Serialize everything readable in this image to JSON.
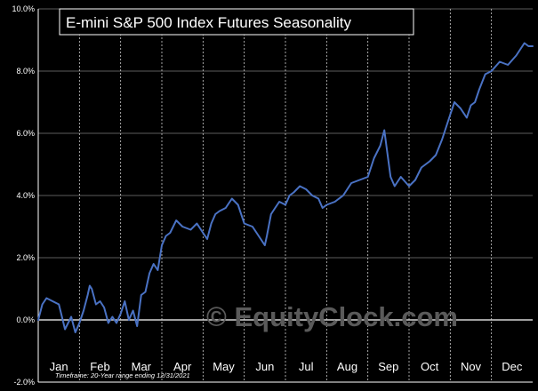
{
  "chart_data": {
    "type": "line",
    "title": "E-mini S&P 500 Index Futures Seasonality",
    "footnote": "Timeframe:  20-Year range  ending 12/31/2021",
    "watermark": "© EquityClock.com",
    "ylim": [
      -2.0,
      10.0
    ],
    "yticks": [
      -2.0,
      0.0,
      2.0,
      4.0,
      6.0,
      8.0,
      10.0
    ],
    "ytick_labels": [
      "-2.0%",
      "0.0%",
      "2.0%",
      "4.0%",
      "6.0%",
      "8.0%",
      "10.0%"
    ],
    "months": [
      "Jan",
      "Feb",
      "Mar",
      "Apr",
      "May",
      "Jun",
      "Jul",
      "Aug",
      "Sep",
      "Oct",
      "Nov",
      "Dec"
    ],
    "xlim": [
      0,
      12
    ],
    "series": [
      {
        "name": "Seasonality",
        "color": "#4a72c4",
        "x": [
          0.0,
          0.1,
          0.2,
          0.35,
          0.5,
          0.65,
          0.8,
          0.9,
          1.0,
          1.1,
          1.2,
          1.25,
          1.3,
          1.4,
          1.5,
          1.6,
          1.7,
          1.8,
          1.9,
          2.0,
          2.1,
          2.2,
          2.3,
          2.4,
          2.5,
          2.6,
          2.7,
          2.8,
          2.9,
          3.0,
          3.1,
          3.2,
          3.35,
          3.5,
          3.7,
          3.85,
          4.0,
          4.1,
          4.2,
          4.3,
          4.4,
          4.55,
          4.7,
          4.85,
          5.0,
          5.2,
          5.4,
          5.5,
          5.55,
          5.65,
          5.75,
          5.85,
          6.0,
          6.1,
          6.2,
          6.35,
          6.5,
          6.65,
          6.8,
          6.9,
          7.0,
          7.2,
          7.4,
          7.6,
          7.8,
          8.0,
          8.15,
          8.3,
          8.4,
          8.45,
          8.55,
          8.65,
          8.8,
          9.0,
          9.15,
          9.3,
          9.5,
          9.65,
          9.8,
          10.0,
          10.1,
          10.25,
          10.4,
          10.5,
          10.6,
          10.7,
          10.85,
          11.0,
          11.2,
          11.4,
          11.6,
          11.8,
          11.9,
          12.0
        ],
        "values": [
          0.0,
          0.5,
          0.7,
          0.6,
          0.5,
          -0.3,
          0.1,
          -0.4,
          -0.1,
          0.3,
          0.8,
          1.1,
          1.0,
          0.5,
          0.6,
          0.4,
          -0.1,
          0.1,
          -0.1,
          0.2,
          0.6,
          0.0,
          0.3,
          -0.2,
          0.8,
          0.9,
          1.5,
          1.8,
          1.6,
          2.4,
          2.7,
          2.8,
          3.2,
          3.0,
          2.9,
          3.1,
          2.8,
          2.6,
          3.1,
          3.4,
          3.5,
          3.6,
          3.9,
          3.7,
          3.1,
          3.0,
          2.6,
          2.4,
          2.7,
          3.4,
          3.6,
          3.8,
          3.7,
          4.0,
          4.1,
          4.3,
          4.2,
          4.0,
          3.9,
          3.6,
          3.7,
          3.8,
          4.0,
          4.4,
          4.5,
          4.6,
          5.2,
          5.6,
          6.1,
          5.6,
          4.6,
          4.3,
          4.6,
          4.3,
          4.5,
          4.9,
          5.1,
          5.3,
          5.8,
          6.6,
          7.0,
          6.8,
          6.5,
          6.9,
          7.0,
          7.4,
          7.9,
          8.0,
          8.3,
          8.2,
          8.5,
          8.9,
          8.8,
          8.8
        ]
      }
    ]
  }
}
